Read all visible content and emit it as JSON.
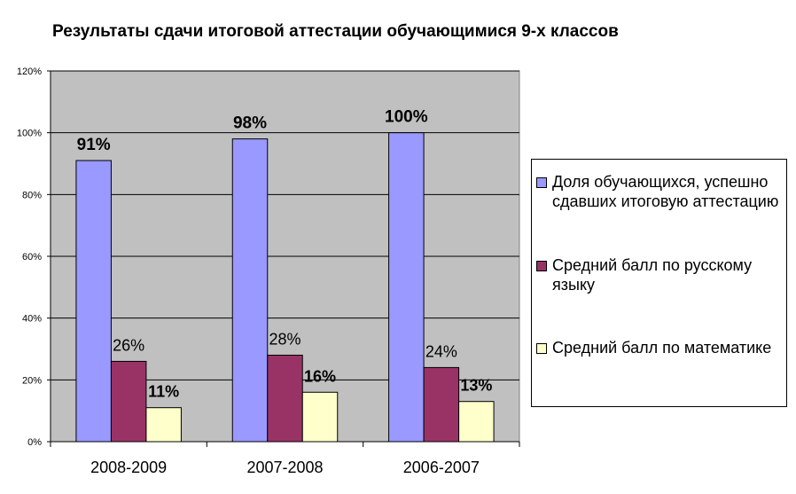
{
  "chart_data": {
    "type": "bar",
    "title": "Результаты сдачи итоговой аттестации обучающимися 9-х классов",
    "categories": [
      "2008-2009",
      "2007-2008",
      "2006-2007"
    ],
    "series": [
      {
        "name": "Доля обучающихся, успешно сдавших итоговую аттестацию",
        "values": [
          91,
          98,
          100
        ],
        "labels": [
          "91%",
          "98%",
          "100%"
        ],
        "color": "#9999ff"
      },
      {
        "name": "Средний балл по русскому языку",
        "values": [
          26,
          28,
          24
        ],
        "labels": [
          "26%",
          "28%",
          "24%"
        ],
        "color": "#993366"
      },
      {
        "name": "Средний балл по математике",
        "values": [
          11,
          16,
          13
        ],
        "labels": [
          "11%",
          "16%",
          "13%"
        ],
        "color": "#ffffcc"
      }
    ],
    "yticks": [
      "0%",
      "20%",
      "40%",
      "60%",
      "80%",
      "100%",
      "120%"
    ],
    "ylim": [
      0,
      120
    ],
    "grid": true,
    "plot_background": "#c0c0c0",
    "legend_position": "right"
  }
}
